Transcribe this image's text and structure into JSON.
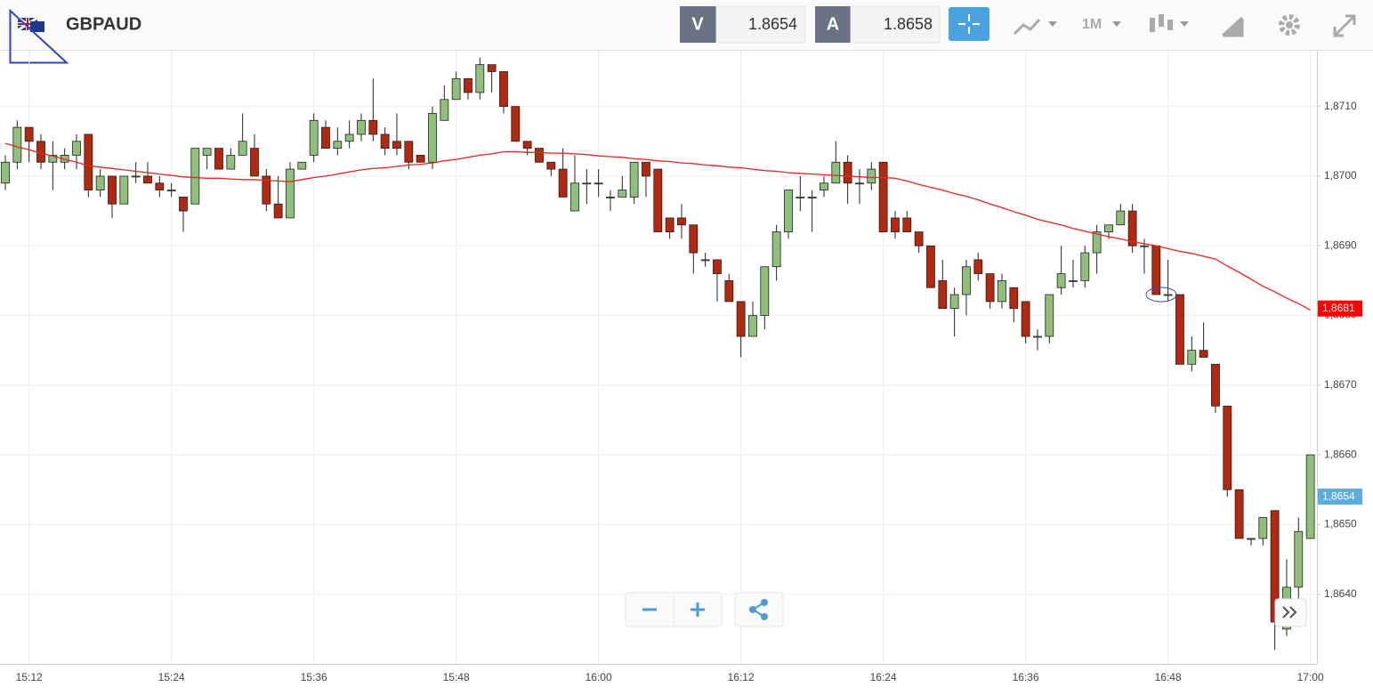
{
  "toolbar": {
    "symbol": "GBPAUD",
    "bid_label": "V",
    "bid": "1.8654",
    "ask_label": "A",
    "ask": "1.8658",
    "interval": "1M"
  },
  "chart_data": {
    "type": "candlestick",
    "categories": [
      null,
      null,
      "15:12",
      null,
      null,
      null,
      null,
      null,
      null,
      null,
      null,
      null,
      null,
      null,
      "15:24",
      null,
      null,
      null,
      null,
      null,
      null,
      null,
      null,
      null,
      null,
      null,
      "15:36",
      null,
      null,
      null,
      null,
      null,
      null,
      null,
      null,
      null,
      null,
      null,
      "15:48",
      null,
      null,
      null,
      null,
      null,
      null,
      null,
      null,
      null,
      null,
      null,
      "16:00",
      null,
      null,
      null,
      null,
      null,
      null,
      null,
      null,
      null,
      null,
      null,
      "16:12",
      null,
      null,
      null,
      null,
      null,
      null,
      null,
      null,
      null,
      null,
      null,
      "16:24",
      null,
      null,
      null,
      null,
      null,
      null,
      null,
      null,
      null,
      null,
      null,
      "16:36",
      null,
      null,
      null,
      null,
      null,
      null,
      null,
      null,
      null,
      null,
      null,
      "16:48",
      null,
      null,
      null,
      null,
      null,
      null,
      null,
      null,
      null,
      null,
      null,
      "17:00"
    ],
    "open": [
      1.8699,
      1.8702,
      1.8707,
      1.8705,
      1.8702,
      1.8702,
      1.8703,
      1.8706,
      1.8698,
      1.87,
      1.8696,
      1.87,
      1.87,
      1.8699,
      1.8698,
      1.8697,
      1.8696,
      1.8703,
      1.8704,
      1.8701,
      1.8703,
      1.8704,
      1.87,
      1.8696,
      1.8694,
      1.8701,
      1.8703,
      1.8707,
      1.8704,
      1.8705,
      1.8706,
      1.8708,
      1.8706,
      1.8705,
      1.8705,
      1.8703,
      1.8702,
      1.8708,
      1.8711,
      1.8714,
      1.8712,
      1.8716,
      1.8715,
      1.871,
      1.8705,
      1.8704,
      1.8702,
      1.8701,
      1.8695,
      1.8699,
      1.8699,
      1.8697,
      1.8697,
      1.8697,
      1.8702,
      1.8701,
      1.8694,
      1.8694,
      1.8693,
      1.8688,
      1.8688,
      1.8685,
      1.8682,
      1.8677,
      1.868,
      1.8687,
      1.8692,
      1.8697,
      1.8697,
      1.8698,
      1.8699,
      1.8702,
      1.8699,
      1.8699,
      1.8702,
      1.8694,
      1.8694,
      1.8692,
      1.869,
      1.8685,
      1.8681,
      1.8683,
      1.8688,
      1.8686,
      1.8682,
      1.8684,
      1.8682,
      1.8677,
      1.8677,
      1.8684,
      1.8685,
      1.8685,
      1.8689,
      1.8692,
      1.8693,
      1.8695,
      1.869,
      1.869,
      1.8683,
      1.8683,
      1.8673,
      1.8675,
      1.8673,
      1.8667,
      1.8655,
      1.8648,
      1.8648,
      1.8652,
      1.8635,
      1.8641,
      1.8648
    ],
    "high": [
      1.8703,
      1.8708,
      1.8707,
      1.8706,
      1.8705,
      1.8704,
      1.8706,
      1.8706,
      1.8701,
      1.87,
      1.87,
      1.8702,
      1.8702,
      1.87,
      1.8699,
      1.8697,
      1.8704,
      1.8704,
      1.8704,
      1.8704,
      1.8709,
      1.8706,
      1.8701,
      1.87,
      1.8702,
      1.8702,
      1.8709,
      1.8708,
      1.8707,
      1.8708,
      1.8709,
      1.8714,
      1.8707,
      1.8709,
      1.8705,
      1.8703,
      1.871,
      1.8713,
      1.8715,
      1.8714,
      1.8717,
      1.8716,
      1.8715,
      1.871,
      1.8705,
      1.8704,
      1.8702,
      1.8704,
      1.8703,
      1.8701,
      1.8701,
      1.8698,
      1.87,
      1.8702,
      1.8702,
      1.8701,
      1.8694,
      1.8696,
      1.8693,
      1.8689,
      1.8688,
      1.8686,
      1.8682,
      1.8682,
      1.8687,
      1.8693,
      1.8698,
      1.87,
      1.8698,
      1.87,
      1.8705,
      1.8703,
      1.8701,
      1.8702,
      1.8702,
      1.8695,
      1.8695,
      1.8692,
      1.869,
      1.8688,
      1.8684,
      1.8688,
      1.8689,
      1.8686,
      1.8686,
      1.8684,
      1.8682,
      1.8678,
      1.8683,
      1.869,
      1.8688,
      1.869,
      1.8693,
      1.8693,
      1.8696,
      1.8696,
      1.8691,
      1.869,
      1.8688,
      1.8683,
      1.8677,
      1.8679,
      1.8673,
      1.8667,
      1.8655,
      1.8648,
      1.8651,
      1.8652,
      1.8645,
      1.8651,
      1.866
    ],
    "low": [
      1.8698,
      1.8701,
      1.8702,
      1.8701,
      1.8698,
      1.8701,
      1.8701,
      1.8697,
      1.8697,
      1.8694,
      1.8696,
      1.8699,
      1.8699,
      1.8697,
      1.8697,
      1.8692,
      1.8696,
      1.8701,
      1.8701,
      1.8701,
      1.8703,
      1.87,
      1.8695,
      1.8694,
      1.8694,
      1.8701,
      1.8702,
      1.8704,
      1.8703,
      1.8704,
      1.8705,
      1.8705,
      1.8703,
      1.8703,
      1.8701,
      1.8702,
      1.8701,
      1.8708,
      1.8711,
      1.8711,
      1.8711,
      1.8712,
      1.8709,
      1.8705,
      1.8703,
      1.8702,
      1.87,
      1.8697,
      1.8695,
      1.8696,
      1.8697,
      1.8695,
      1.8697,
      1.8696,
      1.8697,
      1.8692,
      1.8691,
      1.8691,
      1.8686,
      1.8687,
      1.8682,
      1.8682,
      1.8674,
      1.8677,
      1.8678,
      1.8685,
      1.8691,
      1.8695,
      1.8692,
      1.8697,
      1.8699,
      1.8696,
      1.8696,
      1.8698,
      1.8692,
      1.8691,
      1.8692,
      1.8689,
      1.8684,
      1.8681,
      1.8677,
      1.868,
      1.8685,
      1.8681,
      1.8681,
      1.8679,
      1.8676,
      1.8675,
      1.8676,
      1.8683,
      1.8684,
      1.8684,
      1.8686,
      1.8691,
      1.8693,
      1.8689,
      1.8686,
      1.8683,
      1.8682,
      1.8673,
      1.8672,
      1.8674,
      1.8666,
      1.8654,
      1.8648,
      1.8647,
      1.8647,
      1.8632,
      1.8634,
      1.8639,
      1.8648
    ],
    "close": [
      1.8702,
      1.8707,
      1.8705,
      1.8702,
      1.8703,
      1.8703,
      1.8705,
      1.8698,
      1.87,
      1.8696,
      1.87,
      1.87,
      1.8699,
      1.8698,
      1.8698,
      1.8695,
      1.8704,
      1.8704,
      1.8701,
      1.8703,
      1.8705,
      1.87,
      1.8696,
      1.8694,
      1.8701,
      1.8702,
      1.8708,
      1.8704,
      1.8705,
      1.8706,
      1.8708,
      1.8706,
      1.8704,
      1.8704,
      1.8702,
      1.8702,
      1.8709,
      1.8711,
      1.8714,
      1.8712,
      1.8716,
      1.8715,
      1.871,
      1.8705,
      1.8704,
      1.8702,
      1.8701,
      1.8697,
      1.8699,
      1.8699,
      1.8699,
      1.8697,
      1.8698,
      1.8702,
      1.87,
      1.8692,
      1.8692,
      1.8693,
      1.8689,
      1.8688,
      1.8686,
      1.8682,
      1.8677,
      1.868,
      1.8687,
      1.8692,
      1.8698,
      1.8697,
      1.8697,
      1.8699,
      1.8702,
      1.8699,
      1.8699,
      1.8701,
      1.8692,
      1.8692,
      1.8692,
      1.869,
      1.8684,
      1.8681,
      1.8683,
      1.8687,
      1.8686,
      1.8682,
      1.8685,
      1.8681,
      1.8677,
      1.8677,
      1.8683,
      1.8686,
      1.8685,
      1.8689,
      1.8692,
      1.8693,
      1.8695,
      1.869,
      1.869,
      1.8683,
      1.8683,
      1.8673,
      1.8675,
      1.8674,
      1.8667,
      1.8655,
      1.8648,
      1.8648,
      1.8651,
      1.8636,
      1.8641,
      1.8649,
      1.866
    ],
    "up_color": "#8fbf7a",
    "down_color": "#b3280f",
    "wick_color": "#222222",
    "ma": {
      "color": "#ee2222",
      "values": [
        1.87047,
        1.87042,
        1.87038,
        1.87033,
        1.87029,
        1.87024,
        1.8702,
        1.87015,
        1.87013,
        1.87011,
        1.87009,
        1.87007,
        1.87005,
        1.87003,
        1.87001,
        1.86999,
        1.86998,
        1.86997,
        1.86997,
        1.86996,
        1.86995,
        1.86995,
        1.86994,
        1.86993,
        1.86992,
        1.86995,
        1.86998,
        1.87,
        1.87003,
        1.87006,
        1.87009,
        1.87011,
        1.87012,
        1.87014,
        1.87016,
        1.87017,
        1.87019,
        1.87022,
        1.87024,
        1.87027,
        1.8703,
        1.87032,
        1.87035,
        1.87035,
        1.87034,
        1.87034,
        1.87033,
        1.87033,
        1.87032,
        1.87031,
        1.87029,
        1.87028,
        1.87027,
        1.87025,
        1.87024,
        1.87022,
        1.87021,
        1.87019,
        1.87018,
        1.87016,
        1.87015,
        1.87013,
        1.87012,
        1.8701,
        1.87008,
        1.87007,
        1.87005,
        1.87004,
        1.87003,
        1.87002,
        1.87001,
        1.87,
        1.86999,
        1.86998,
        1.86998,
        1.86997,
        1.86993,
        1.86988,
        1.86984,
        1.8698,
        1.86975,
        1.86971,
        1.86966,
        1.8696,
        1.86955,
        1.86949,
        1.86944,
        1.86938,
        1.86934,
        1.8693,
        1.86925,
        1.86921,
        1.86917,
        1.86913,
        1.8691,
        1.86906,
        1.86903,
        1.869,
        1.86896,
        1.86892,
        1.86889,
        1.86885,
        1.86881,
        1.86871,
        1.86862,
        1.86852,
        1.86842,
        1.86834,
        1.86825,
        1.86817,
        1.86808
      ]
    },
    "ylim": [
      1.863,
      1.8718
    ],
    "yticks": [
      {
        "value": 1.864,
        "label": "1,8640"
      },
      {
        "value": 1.865,
        "label": "1,8650"
      },
      {
        "value": 1.866,
        "label": "1,8660"
      },
      {
        "value": 1.867,
        "label": "1,8670"
      },
      {
        "value": 1.868,
        "label": "1,8680"
      },
      {
        "value": 1.869,
        "label": "1,8690"
      },
      {
        "value": 1.87,
        "label": "1,8700"
      },
      {
        "value": 1.871,
        "label": "1,8710"
      }
    ],
    "grid": true,
    "price_tags": [
      {
        "value": 1.8681,
        "label": "1,8681",
        "color": "#ff0000"
      },
      {
        "value": 1.8654,
        "label": "1,8654",
        "color": "#5aaede"
      }
    ]
  }
}
